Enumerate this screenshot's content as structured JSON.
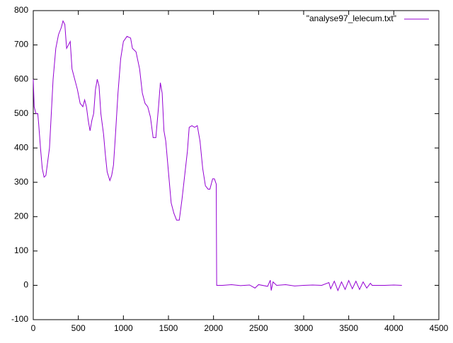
{
  "chart_data": {
    "type": "line",
    "series": [
      {
        "name": "\"analyse97_lelecum.txt\"",
        "color": "#9400d3",
        "x": [
          0,
          10,
          30,
          50,
          60,
          80,
          100,
          120,
          140,
          160,
          180,
          200,
          220,
          250,
          280,
          310,
          330,
          350,
          370,
          390,
          410,
          430,
          460,
          490,
          520,
          550,
          570,
          590,
          610,
          630,
          650,
          670,
          690,
          710,
          730,
          750,
          780,
          800,
          820,
          850,
          870,
          890,
          910,
          940,
          970,
          1000,
          1040,
          1080,
          1100,
          1140,
          1180,
          1210,
          1240,
          1270,
          1300,
          1330,
          1360,
          1390,
          1410,
          1430,
          1450,
          1470,
          1500,
          1530,
          1560,
          1590,
          1620,
          1650,
          1680,
          1710,
          1730,
          1760,
          1790,
          1820,
          1850,
          1880,
          1910,
          1940,
          1960,
          1990,
          2010,
          2030,
          2035,
          2100,
          2200,
          2300,
          2400,
          2460,
          2500,
          2600,
          2630,
          2640,
          2660,
          2700,
          2800,
          2900,
          3000,
          3100,
          3200,
          3280,
          3300,
          3340,
          3380,
          3420,
          3460,
          3500,
          3540,
          3580,
          3620,
          3660,
          3700,
          3740,
          3760,
          3900,
          4000,
          4090
        ],
        "values": [
          600,
          520,
          500,
          500,
          470,
          400,
          340,
          315,
          320,
          360,
          400,
          500,
          600,
          690,
          730,
          750,
          770,
          760,
          690,
          700,
          710,
          630,
          600,
          570,
          530,
          520,
          540,
          520,
          480,
          450,
          480,
          500,
          570,
          600,
          580,
          500,
          440,
          380,
          330,
          305,
          320,
          350,
          430,
          560,
          660,
          710,
          725,
          720,
          690,
          680,
          630,
          560,
          530,
          520,
          490,
          430,
          430,
          520,
          590,
          560,
          450,
          420,
          330,
          240,
          210,
          190,
          190,
          250,
          320,
          390,
          460,
          465,
          460,
          465,
          420,
          340,
          290,
          280,
          280,
          310,
          310,
          295,
          0,
          0,
          2,
          -1,
          1,
          -8,
          2,
          -3,
          15,
          -15,
          10,
          0,
          2,
          -2,
          0,
          1,
          0,
          8,
          -10,
          12,
          -15,
          10,
          -12,
          14,
          -10,
          12,
          -12,
          10,
          -8,
          6,
          0,
          0,
          1,
          0
        ]
      }
    ],
    "xlim": [
      0,
      4500
    ],
    "xticks": [
      0,
      500,
      1000,
      1500,
      2000,
      2500,
      3000,
      3500,
      4000,
      4500
    ],
    "ylim": [
      -100,
      800
    ],
    "yticks": [
      -100,
      0,
      100,
      200,
      300,
      400,
      500,
      600,
      700,
      800
    ],
    "legend": "upper right",
    "grid": false
  }
}
